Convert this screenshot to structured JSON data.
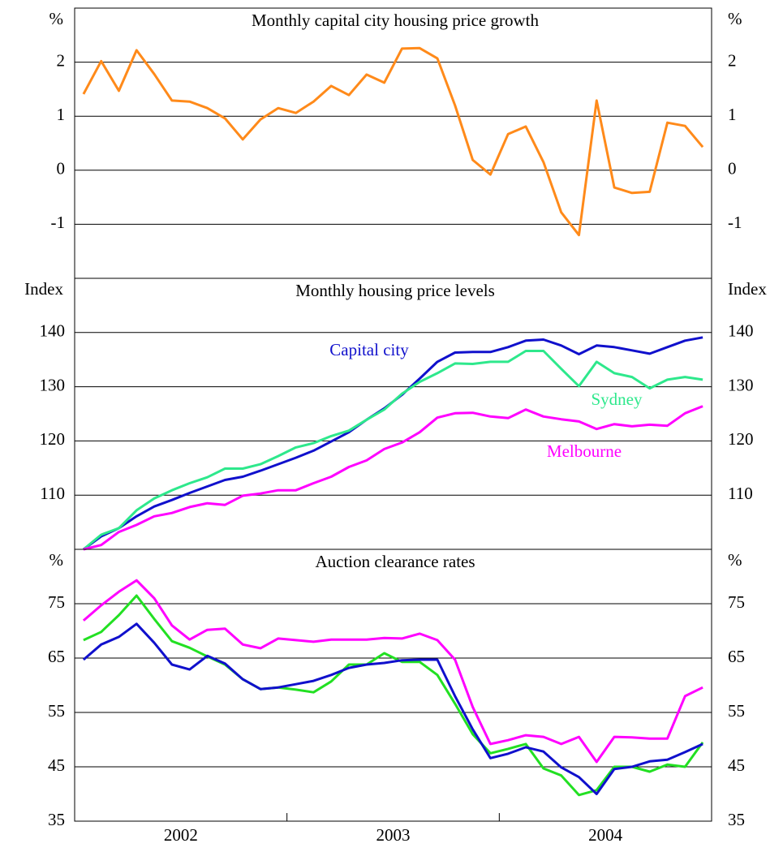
{
  "chart_data": [
    {
      "type": "line",
      "title": "Monthly capital city housing price growth",
      "unit_label": "%",
      "ylim": [
        -2,
        3
      ],
      "yticks": [
        -1,
        0,
        1,
        2
      ],
      "grid": true,
      "series": [
        {
          "color": "#ff8a1a",
          "values": [
            1.41,
            2.02,
            1.47,
            2.22,
            1.78,
            1.29,
            1.27,
            1.15,
            0.96,
            0.57,
            0.94,
            1.15,
            1.06,
            1.27,
            1.56,
            1.39,
            1.77,
            1.62,
            2.25,
            2.26,
            2.07,
            1.2,
            0.19,
            -0.08,
            0.67,
            0.81,
            0.15,
            -0.78,
            -1.2,
            1.29,
            -0.32,
            -0.42,
            -0.4,
            0.88,
            0.82,
            0.43
          ]
        }
      ]
    },
    {
      "type": "line",
      "title": "Monthly housing price levels",
      "unit_label": "Index",
      "ylim": [
        100,
        150
      ],
      "yticks": [
        110,
        120,
        130,
        140
      ],
      "grid": true,
      "series": [
        {
          "name": "Capital city",
          "color": "#1010cc",
          "values": [
            100,
            102.4,
            103.9,
            106.1,
            107.9,
            109.1,
            110.4,
            111.6,
            112.8,
            113.4,
            114.5,
            115.7,
            116.9,
            118.2,
            119.9,
            121.6,
            123.9,
            126,
            128.5,
            131.5,
            134.6,
            136.3,
            136.4,
            136.4,
            137.3,
            138.5,
            138.7,
            137.6,
            136,
            137.6,
            137.3,
            136.7,
            136.1,
            137.3,
            138.5,
            139.1
          ]
        },
        {
          "name": "Sydney",
          "color": "#2ee88c",
          "values": [
            100,
            102.7,
            103.9,
            107.2,
            109.4,
            110.9,
            112.2,
            113.3,
            114.9,
            114.9,
            115.7,
            117.2,
            118.8,
            119.6,
            120.9,
            121.9,
            123.9,
            125.8,
            128.7,
            130.9,
            132.5,
            134.3,
            134.2,
            134.6,
            134.6,
            136.6,
            136.6,
            133.3,
            130.1,
            134.6,
            132.5,
            131.8,
            129.7,
            131.3,
            131.8,
            131.3
          ]
        },
        {
          "name": "Melbourne",
          "color": "#ff00ff",
          "values": [
            100,
            100.8,
            103.2,
            104.5,
            106.1,
            106.7,
            107.8,
            108.5,
            108.2,
            109.9,
            110.3,
            110.9,
            110.9,
            112.2,
            113.4,
            115.2,
            116.4,
            118.5,
            119.7,
            121.6,
            124.3,
            125.1,
            125.2,
            124.5,
            124.2,
            125.8,
            124.5,
            124,
            123.6,
            122.2,
            123.1,
            122.7,
            123,
            122.8,
            125.1,
            126.4
          ]
        }
      ]
    },
    {
      "type": "line",
      "title": "Auction clearance rates",
      "unit_label": "%",
      "ylim": [
        35,
        85
      ],
      "yticks": [
        35,
        45,
        55,
        65,
        75
      ],
      "grid": true,
      "categories": [
        null,
        null,
        null,
        null,
        null,
        null,
        null,
        null,
        null,
        null,
        null,
        null,
        null,
        null,
        null,
        null,
        null,
        null,
        null,
        null,
        null,
        null,
        null,
        null,
        null,
        null,
        null,
        null,
        null,
        null,
        null,
        null,
        null,
        null,
        null,
        null
      ],
      "category_groups": [
        "2002",
        "2003",
        "2004"
      ],
      "series": [
        {
          "color": "#ff00ff",
          "values": [
            71.9,
            74.7,
            77.2,
            79.3,
            76,
            71,
            68.4,
            70.2,
            70.4,
            67.5,
            66.8,
            68.6,
            68.3,
            68,
            68.4,
            68.4,
            68.4,
            68.7,
            68.6,
            69.5,
            68.3,
            64.7,
            56,
            49.2,
            49.9,
            50.8,
            50.5,
            49.2,
            50.5,
            45.9,
            50.5,
            50.4,
            50.2,
            50.2,
            58,
            59.6
          ]
        },
        {
          "color": "#22e022",
          "values": [
            68.3,
            69.8,
            72.9,
            76.5,
            72.2,
            68.1,
            66.9,
            65.3,
            63.8,
            61.1,
            59.3,
            59.6,
            59.2,
            58.7,
            60.7,
            63.8,
            63.8,
            65.9,
            64.3,
            64.3,
            61.9,
            56.6,
            51,
            47.5,
            48.3,
            49.2,
            44.7,
            43.4,
            39.8,
            40.7,
            45,
            45,
            44.1,
            45.4,
            45,
            49.5
          ]
        },
        {
          "color": "#1010cc",
          "values": [
            64.7,
            67.5,
            68.9,
            71.3,
            67.8,
            63.8,
            62.9,
            65.4,
            64,
            61.1,
            59.3,
            59.6,
            60.2,
            60.8,
            61.9,
            63.2,
            63.8,
            64.1,
            64.6,
            64.7,
            64.7,
            58,
            51.9,
            46.6,
            47.4,
            48.6,
            47.8,
            44.9,
            43.1,
            40,
            44.6,
            45,
            46,
            46.3,
            47.7,
            49.2
          ]
        }
      ]
    }
  ]
}
